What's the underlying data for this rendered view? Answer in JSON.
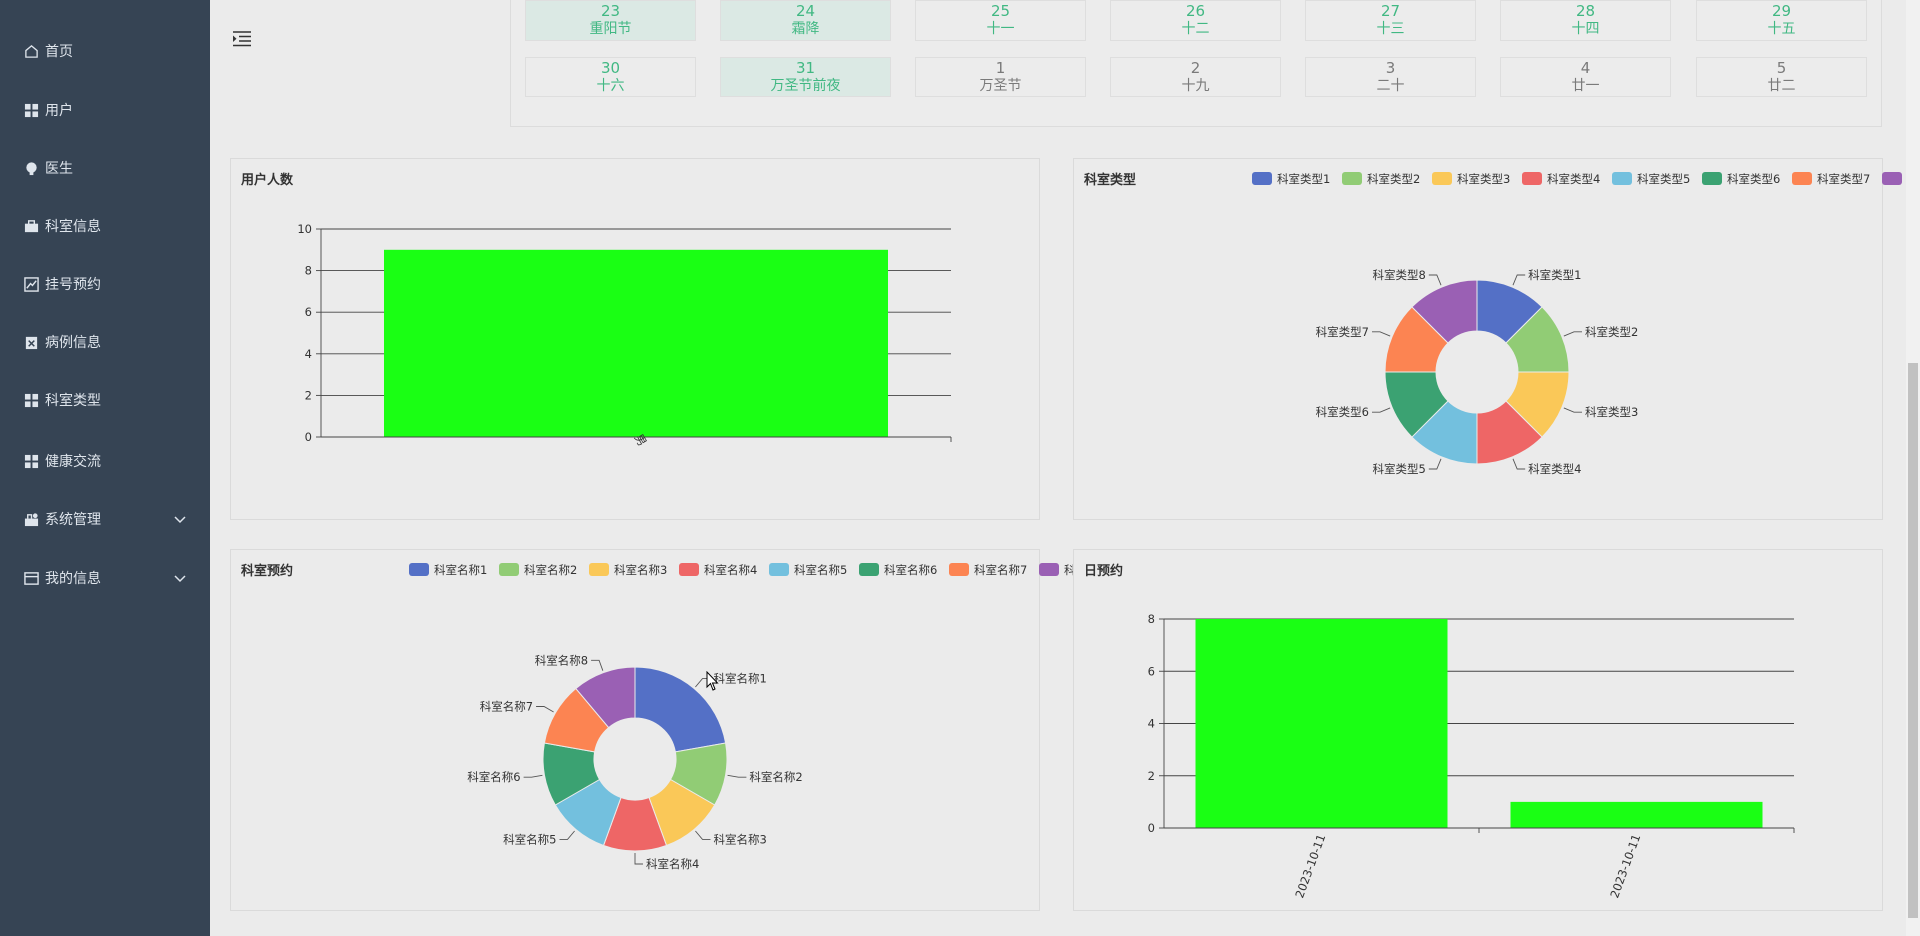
{
  "sidebar": {
    "items": [
      {
        "label": "首页",
        "icon": "home-icon"
      },
      {
        "label": "用户",
        "icon": "grid-icon"
      },
      {
        "label": "医生",
        "icon": "bulb-icon"
      },
      {
        "label": "科室信息",
        "icon": "briefcase-icon"
      },
      {
        "label": "挂号预约",
        "icon": "chart-icon"
      },
      {
        "label": "病例信息",
        "icon": "clipboard-icon"
      },
      {
        "label": "科室类型",
        "icon": "grid-icon"
      },
      {
        "label": "健康交流",
        "icon": "grid-icon"
      },
      {
        "label": "系统管理",
        "icon": "settings-icon"
      },
      {
        "label": "我的信息",
        "icon": "card-icon"
      }
    ]
  },
  "calendar": {
    "row1": [
      {
        "day": "23",
        "lunar": "重阳节"
      },
      {
        "day": "24",
        "lunar": "霜降"
      },
      {
        "day": "25",
        "lunar": "十一"
      },
      {
        "day": "26",
        "lunar": "十二"
      },
      {
        "day": "27",
        "lunar": "十三"
      },
      {
        "day": "28",
        "lunar": "十四"
      },
      {
        "day": "29",
        "lunar": "十五"
      }
    ],
    "row2": [
      {
        "day": "30",
        "lunar": "十六"
      },
      {
        "day": "31",
        "lunar": "万圣节前夜"
      },
      {
        "day": "1",
        "lunar": "万圣节"
      },
      {
        "day": "2",
        "lunar": "十九"
      },
      {
        "day": "3",
        "lunar": "二十"
      },
      {
        "day": "4",
        "lunar": "廿一"
      },
      {
        "day": "5",
        "lunar": "廿二"
      }
    ]
  },
  "cards": {
    "users": {
      "title": "用户人数"
    },
    "dept_types": {
      "title": "科室类型"
    },
    "dept_appointments": {
      "title": "科室预约"
    },
    "daily": {
      "title": "日预约"
    }
  },
  "colors": {
    "bar": "#1aff14",
    "palette": [
      "#5470c6",
      "#91cc75",
      "#fac858",
      "#ee6666",
      "#73c0de",
      "#3ba272",
      "#fc8452",
      "#9a60b4"
    ],
    "sidebar_bg": "#364454",
    "calendar_accent": "#41b883"
  },
  "chart_data": [
    {
      "type": "bar",
      "title": "用户人数",
      "categories": [
        "男"
      ],
      "values": [
        9
      ],
      "ylim": [
        0,
        10
      ],
      "yticks": [
        0,
        2,
        4,
        6,
        8,
        10
      ],
      "grid": true
    },
    {
      "type": "pie",
      "title": "科室类型",
      "donut": true,
      "labels": [
        "科室类型1",
        "科室类型2",
        "科室类型3",
        "科室类型4",
        "科室类型5",
        "科室类型6",
        "科室类型7",
        "科室类型8"
      ],
      "values": [
        1,
        1,
        1,
        1,
        1,
        1,
        1,
        1
      ],
      "legend": "top"
    },
    {
      "type": "pie",
      "title": "科室预约",
      "donut": true,
      "labels": [
        "科室名称1",
        "科室名称2",
        "科室名称3",
        "科室名称4",
        "科室名称5",
        "科室名称6",
        "科室名称7",
        "科室名称8"
      ],
      "values": [
        2,
        1,
        1,
        1,
        1,
        1,
        1,
        1
      ],
      "legend": "top"
    },
    {
      "type": "bar",
      "title": "日预约",
      "categories": [
        "2023-10-11",
        "2023-10-11"
      ],
      "values": [
        8,
        1
      ],
      "ylim": [
        0,
        8
      ],
      "yticks": [
        0,
        2,
        4,
        6,
        8
      ],
      "grid": true
    }
  ]
}
